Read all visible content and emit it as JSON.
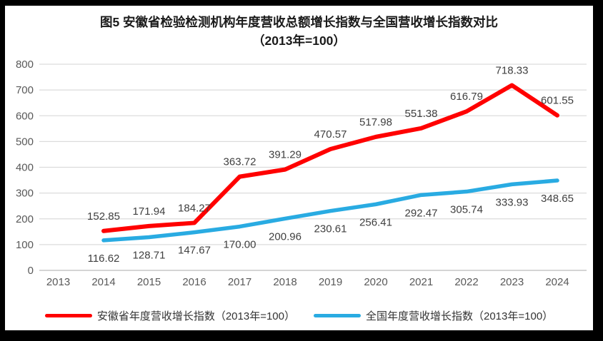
{
  "title": {
    "line1": "图5  安徽省检验检测机构年度营收总额增长指数与全国营收增长指数对比",
    "line2": "（2013年=100）"
  },
  "colors": {
    "anhui_line": "#FF0000",
    "national_line": "#29ABE2",
    "gridline": "#DCDCDC",
    "zero_axis": "#C6C6C6",
    "axis_text": "#595959",
    "data_label_text": "#3F3F3F",
    "frame_border": "#000000"
  },
  "chart_data": {
    "type": "line",
    "title": "图5 安徽省检验检测机构年度营收总额增长指数与全国营收增长指数对比（2013年=100）",
    "categories": [
      "2013",
      "2014",
      "2015",
      "2016",
      "2017",
      "2018",
      "2019",
      "2020",
      "2021",
      "2022",
      "2023",
      "2024"
    ],
    "series": [
      {
        "name": "安徽省年度营收增长指数（2013年=100）",
        "color": "#FF0000",
        "label_position": "above",
        "values": [
          null,
          152.85,
          171.94,
          184.27,
          363.72,
          391.29,
          470.57,
          517.98,
          551.38,
          616.79,
          718.33,
          601.55
        ]
      },
      {
        "name": "全国年度营收增长指数（2013年=100）",
        "color": "#29ABE2",
        "label_position": "below",
        "values": [
          null,
          116.62,
          128.71,
          147.67,
          170.0,
          200.96,
          230.61,
          256.41,
          292.47,
          305.74,
          333.93,
          348.65
        ]
      }
    ],
    "ylim": [
      0,
      800
    ],
    "yticks": [
      0,
      100,
      200,
      300,
      400,
      500,
      600,
      700,
      800
    ],
    "grid": true,
    "legend_position": "bottom",
    "data_labels_decimals": 2
  }
}
